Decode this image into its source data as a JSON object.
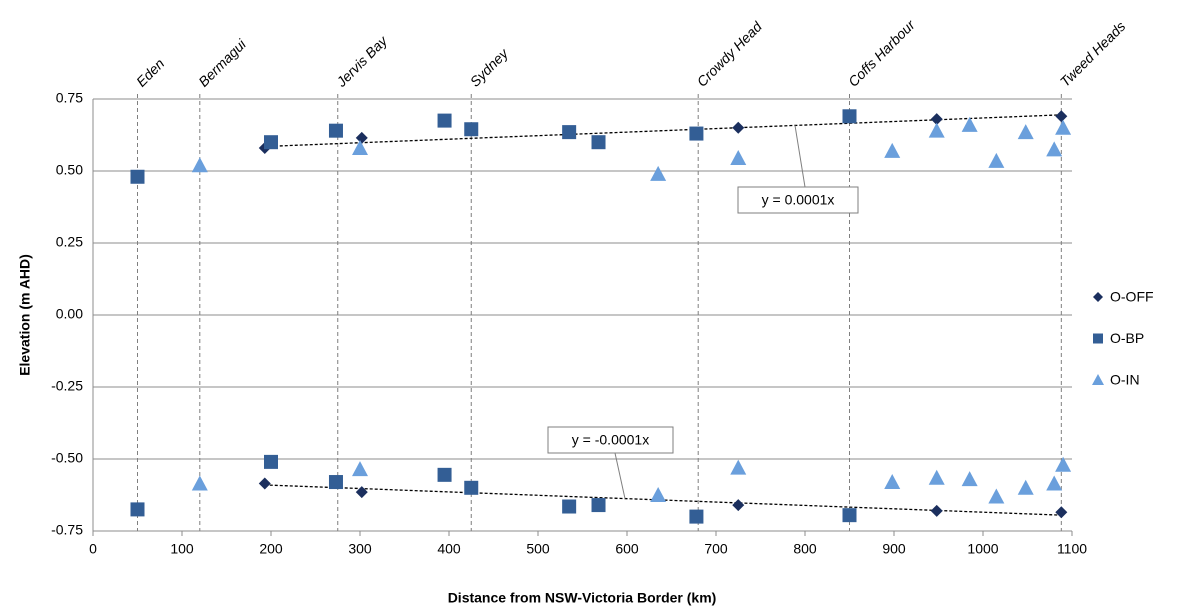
{
  "chart_data": {
    "type": "scatter",
    "xlabel": "Distance from NSW-Victoria Border (km)",
    "ylabel": "Elevation (m AHD)",
    "xlim": [
      0,
      1100
    ],
    "xticks": [
      0,
      100,
      200,
      300,
      400,
      500,
      600,
      700,
      800,
      900,
      1000,
      1100
    ],
    "ylim": [
      -0.75,
      0.75
    ],
    "yticks": [
      -0.75,
      {
        "value": -0.5,
        "label": "-0.50"
      },
      -0.25,
      {
        "value": 0,
        "label": "0.00"
      },
      0.25,
      {
        "value": 0.5,
        "label": "0.50"
      },
      0.75
    ],
    "grid": true,
    "legend": "right",
    "locations": [
      {
        "name": "Eden",
        "x": 50
      },
      {
        "name": "Bermagui",
        "x": 120
      },
      {
        "name": "Jervis Bay",
        "x": 275
      },
      {
        "name": "Sydney",
        "x": 425
      },
      {
        "name": "Crowdy Head",
        "x": 680
      },
      {
        "name": "Coffs Harbour",
        "x": 850
      },
      {
        "name": "Tweed Heads",
        "x": 1088
      }
    ],
    "series": [
      {
        "name": "O-OFF",
        "color": "#1b2f5e",
        "marker": "diamond",
        "x": [
          193,
          302,
          725,
          948,
          1088,
          193,
          302,
          725,
          948,
          1088
        ],
        "values": [
          0.58,
          0.615,
          0.65,
          0.68,
          0.69,
          -0.585,
          -0.615,
          -0.66,
          -0.68,
          -0.685
        ]
      },
      {
        "name": "O-BP",
        "color": "#335e95",
        "marker": "square",
        "x": [
          50,
          200,
          273,
          395,
          425,
          535,
          568,
          678,
          850,
          50,
          200,
          273,
          395,
          425,
          535,
          568,
          678,
          850
        ],
        "values": [
          0.48,
          0.6,
          0.64,
          0.675,
          0.645,
          0.635,
          0.6,
          0.63,
          0.69,
          -0.675,
          -0.51,
          -0.58,
          -0.555,
          -0.6,
          -0.665,
          -0.66,
          -0.7,
          -0.695
        ]
      },
      {
        "name": "O-IN",
        "color": "#6a9fdc",
        "marker": "triangle",
        "x": [
          120,
          300,
          635,
          725,
          898,
          948,
          985,
          1015,
          1048,
          1080,
          1090,
          120,
          300,
          635,
          725,
          898,
          948,
          985,
          1015,
          1048,
          1080,
          1090
        ],
        "values": [
          0.52,
          0.58,
          0.49,
          0.545,
          0.57,
          0.64,
          0.66,
          0.535,
          0.635,
          0.575,
          0.65,
          -0.585,
          -0.535,
          -0.625,
          -0.53,
          -0.58,
          -0.565,
          -0.57,
          -0.63,
          -0.6,
          -0.585,
          -0.52
        ]
      }
    ],
    "trendlines": [
      {
        "label": "y = 0.0001x",
        "x": [
          193,
          1088
        ],
        "y": [
          0.585,
          0.695
        ]
      },
      {
        "label": "y = -0.0001x",
        "x": [
          193,
          1088
        ],
        "y": [
          -0.59,
          -0.695
        ]
      }
    ]
  }
}
